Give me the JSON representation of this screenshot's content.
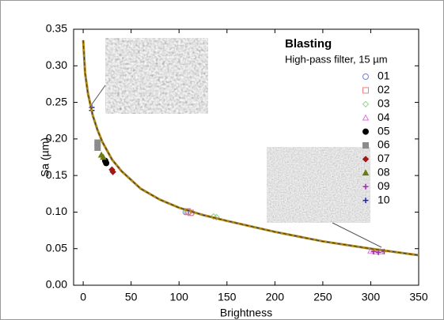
{
  "chart_data": {
    "type": "scatter",
    "title": "Blasting",
    "subtitle": "High-pass filter, 15 µm",
    "x_label": "Brightness",
    "y_label": "Sa (µm)",
    "xlim": [
      -10,
      350
    ],
    "ylim": [
      0,
      0.35
    ],
    "xticks": [
      0,
      50,
      100,
      150,
      200,
      250,
      300,
      350
    ],
    "yticks": [
      {
        "value": 0,
        "label": "0.00"
      },
      {
        "value": 0.05,
        "label": "0.05"
      },
      {
        "value": 0.1,
        "label": "0.10"
      },
      {
        "value": 0.15,
        "label": "0.15"
      },
      {
        "value": 0.2,
        "label": "0.20"
      },
      {
        "value": 0.25,
        "label": "0.25"
      },
      {
        "value": 0.3,
        "label": "0.30"
      },
      {
        "value": 0.35,
        "label": "0.35"
      }
    ],
    "legend": "top-right",
    "series": [
      {
        "name": "01",
        "marker": "circle-open",
        "color": "#6a7fe0",
        "x": [
          107,
          110,
          113
        ],
        "values": [
          0.1,
          0.1,
          0.099
        ]
      },
      {
        "name": "02",
        "marker": "square-open",
        "color": "#f08080",
        "x": [
          109,
          112
        ],
        "values": [
          0.101,
          0.099
        ]
      },
      {
        "name": "03",
        "marker": "diamond-open",
        "color": "#8fcf8f",
        "x": [
          136,
          139
        ],
        "values": [
          0.094,
          0.093
        ]
      },
      {
        "name": "04",
        "marker": "triangle-open",
        "color": "#e070e0",
        "x": [
          300,
          305,
          310
        ],
        "values": [
          0.047,
          0.046,
          0.046
        ]
      },
      {
        "name": "05",
        "marker": "circle",
        "color": "#000000",
        "x": [
          23,
          24
        ],
        "values": [
          0.17,
          0.167
        ]
      },
      {
        "name": "06",
        "marker": "square",
        "color": "#8c8c8c",
        "x": [
          15,
          15
        ],
        "values": [
          0.195,
          0.188
        ]
      },
      {
        "name": "07",
        "marker": "diamond",
        "color": "#a01818",
        "x": [
          30,
          31
        ],
        "values": [
          0.158,
          0.155
        ]
      },
      {
        "name": "08",
        "marker": "triangle",
        "color": "#6b7d12",
        "x": [
          19,
          21
        ],
        "values": [
          0.178,
          0.175
        ]
      },
      {
        "name": "09",
        "marker": "plus",
        "color": "#9b2fae",
        "x": [
          303,
          308,
          314
        ],
        "values": [
          0.046,
          0.045,
          0.046
        ]
      },
      {
        "name": "10",
        "marker": "plus",
        "color": "#2020b0",
        "x": [
          9,
          9
        ],
        "values": [
          0.243,
          0.239
        ]
      },
      {
        "type": "line",
        "color": "#b08a1a",
        "x": [
          0,
          2,
          5,
          10,
          15,
          20,
          30,
          40,
          60,
          80,
          100,
          125,
          150,
          200,
          250,
          300,
          350
        ],
        "values": [
          0.335,
          0.29,
          0.262,
          0.232,
          0.212,
          0.196,
          0.172,
          0.156,
          0.132,
          0.117,
          0.106,
          0.096,
          0.088,
          0.073,
          0.06,
          0.05,
          0.041
        ]
      }
    ]
  }
}
